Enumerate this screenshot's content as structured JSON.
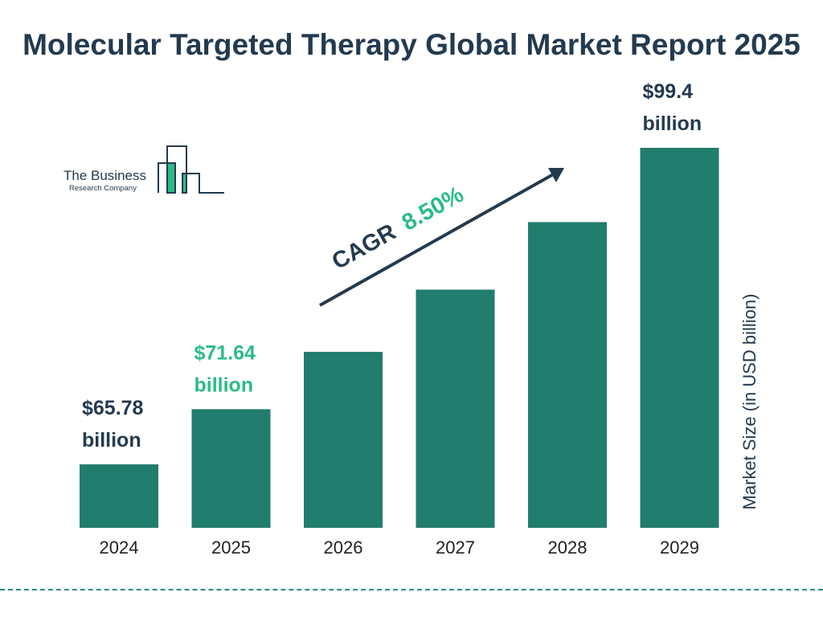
{
  "chart_data": {
    "type": "bar",
    "title": "Molecular Targeted Therapy Global Market Report 2025",
    "ylabel": "Market Size (in USD billion)",
    "categories": [
      "2024",
      "2025",
      "2026",
      "2027",
      "2028",
      "2029"
    ],
    "values": [
      65.78,
      71.64,
      77.73,
      84.34,
      91.51,
      99.4
    ],
    "data_labels": [
      {
        "index": 0,
        "line1": "$65.78",
        "line2": "billion",
        "color": "#233a4f"
      },
      {
        "index": 1,
        "line1": "$71.64",
        "line2": "billion",
        "color": "#2dbb87"
      },
      {
        "index": 5,
        "line1": "$99.4",
        "line2": "billion",
        "color": "#233a4f"
      }
    ],
    "annotation": {
      "label": "CAGR",
      "value": "8.50%"
    },
    "grid": false,
    "colors": {
      "bar": "#217d6d",
      "text": "#233a4f",
      "accent": "#2dbb87"
    }
  },
  "logo": {
    "line1": "The Business",
    "line2": "Research Company"
  }
}
